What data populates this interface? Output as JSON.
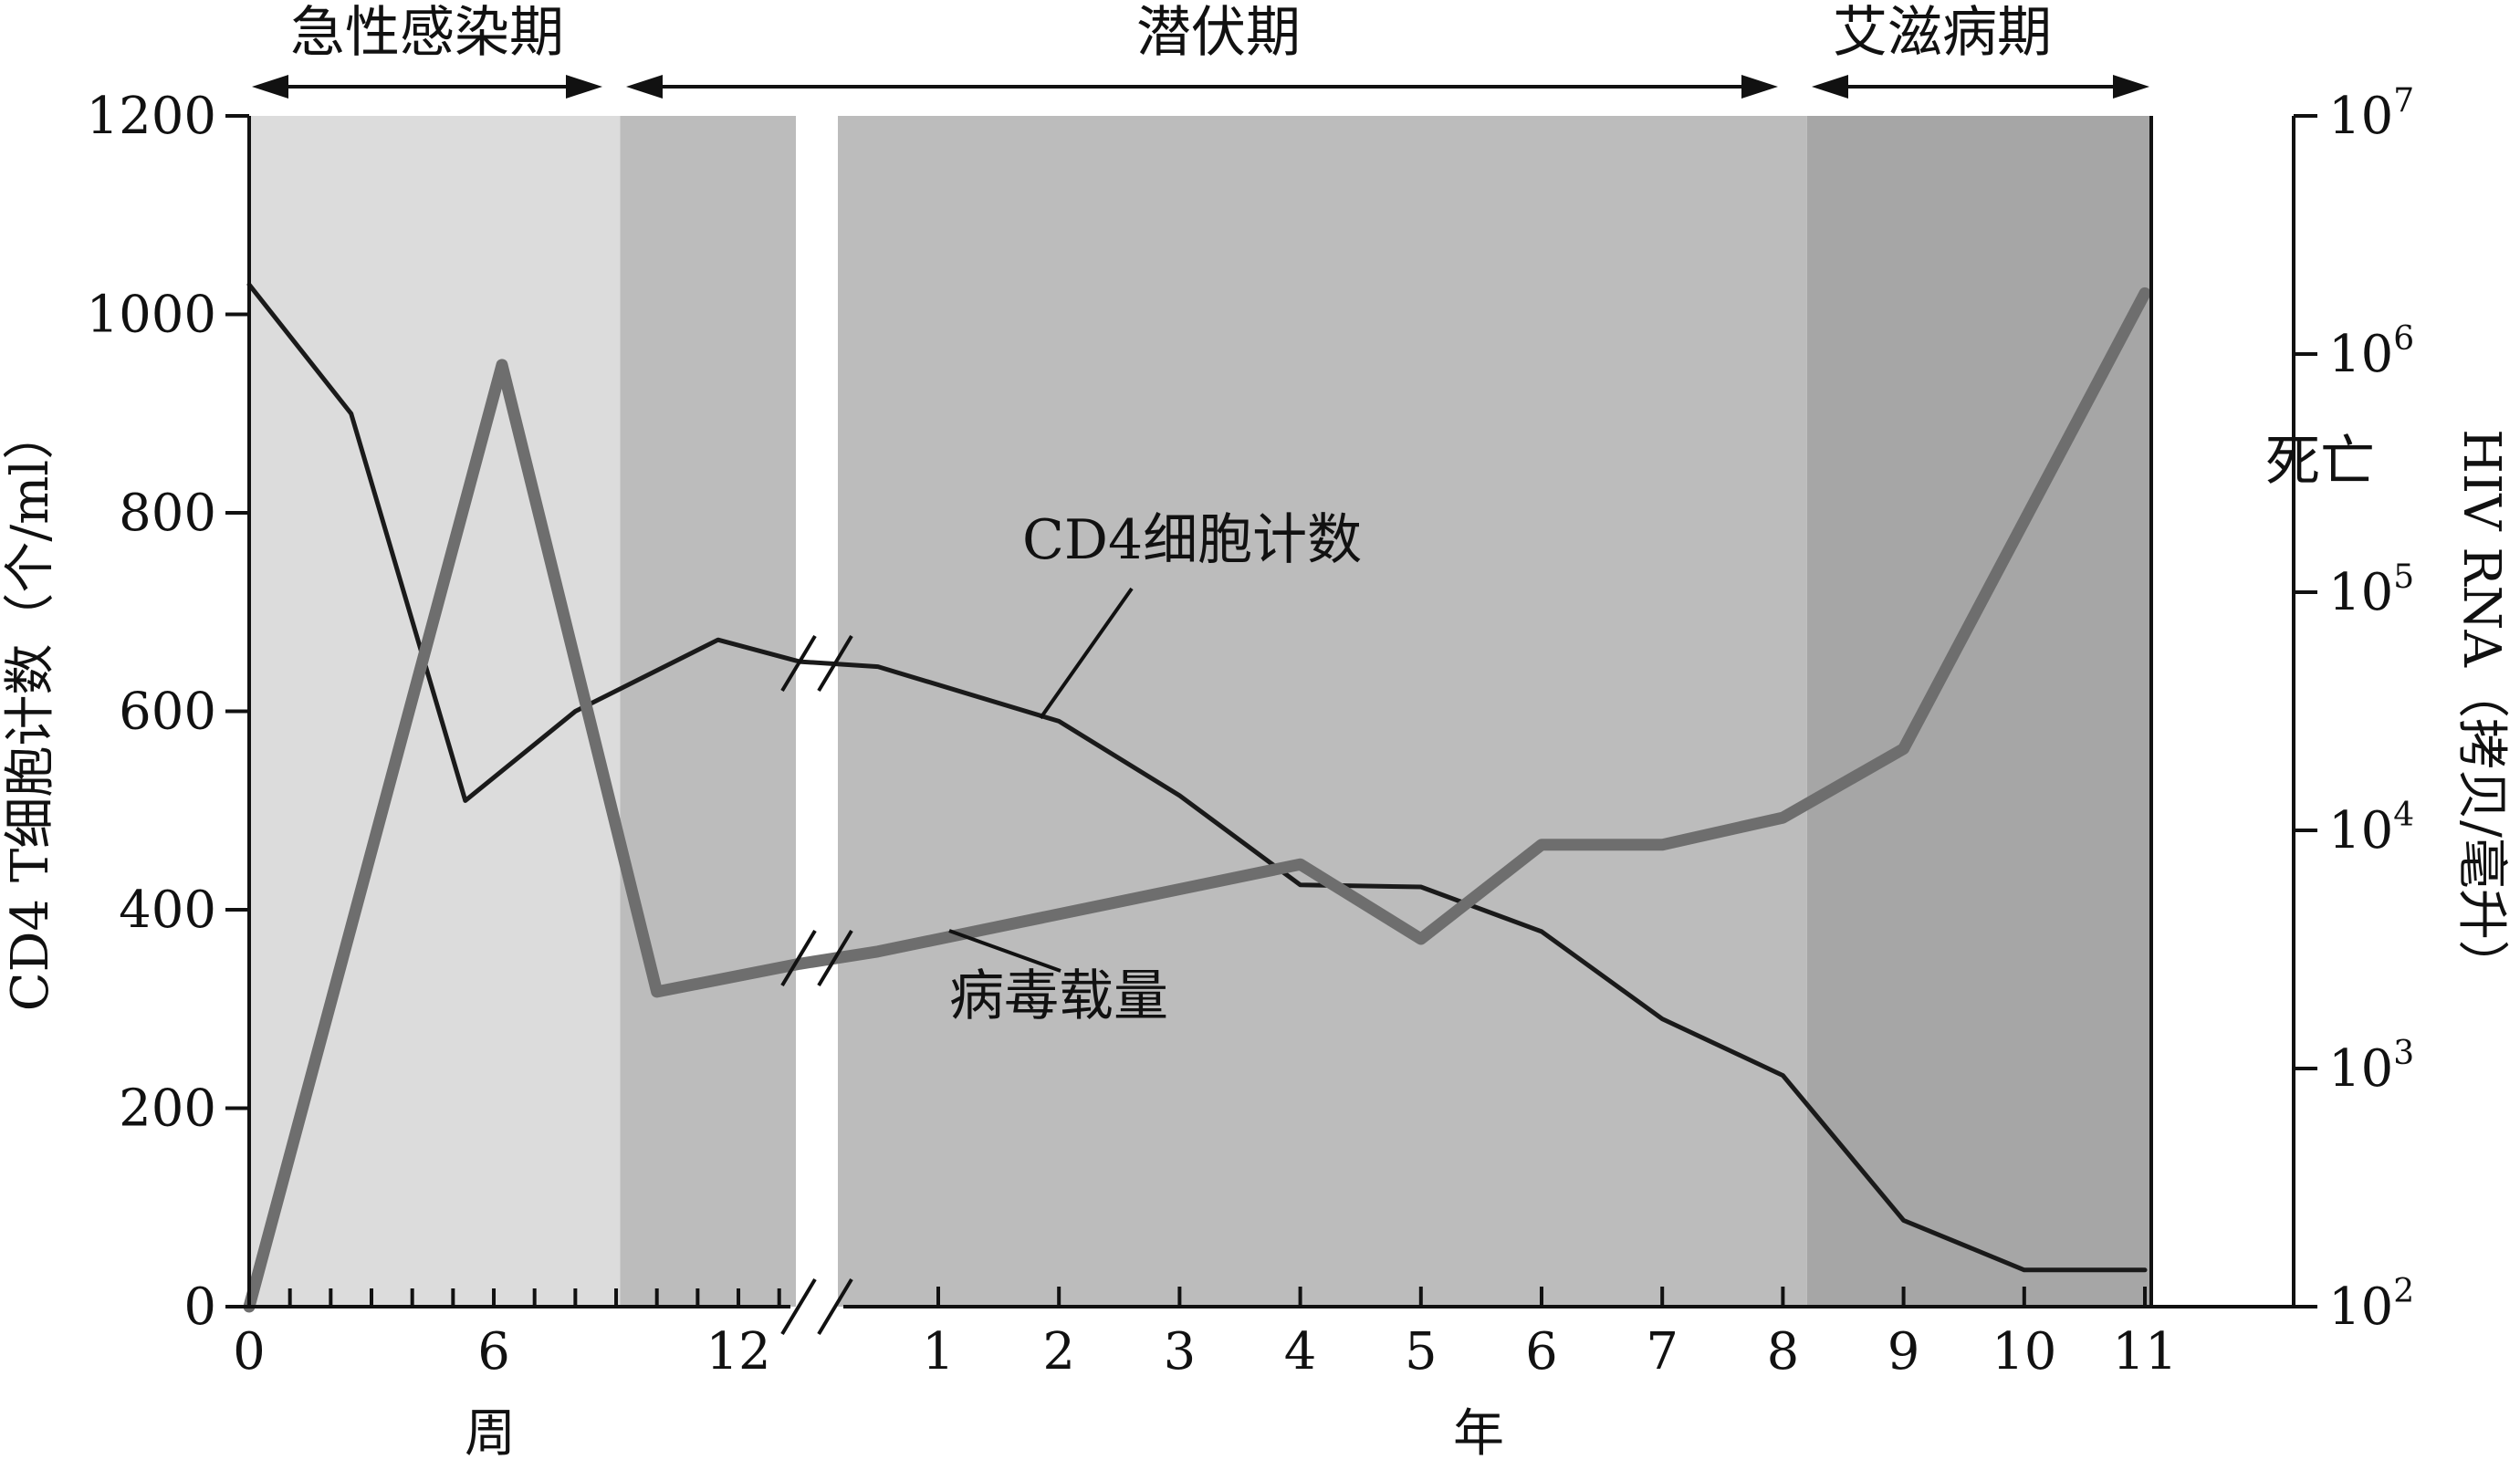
{
  "chart_data": {
    "type": "line",
    "phases": [
      {
        "label": "急性感染期",
        "color": "#dcdcdc"
      },
      {
        "label": "",
        "color": "#bcbcbc"
      },
      {
        "label": "潜伏期",
        "color": "#bcbcbc"
      },
      {
        "label": "艾滋病期",
        "color": "#a6a6a6"
      }
    ],
    "x_axis": {
      "weeks": {
        "ticks": [
          "0",
          "6",
          "12"
        ],
        "label": "周",
        "range": [
          0,
          13.5
        ]
      },
      "years": {
        "ticks": [
          "1",
          "2",
          "3",
          "4",
          "5",
          "6",
          "7",
          "8",
          "9",
          "10",
          "11"
        ],
        "label": "年",
        "range": [
          0.5,
          11
        ]
      }
    },
    "y_left": {
      "label": "CD4 T细胞计数（个/ml）",
      "ticks": [
        "0",
        "200",
        "400",
        "600",
        "800",
        "1000",
        "1200"
      ],
      "range": [
        0,
        1200
      ]
    },
    "y_right": {
      "label": "HIV RNA（拷贝/毫升）",
      "scale": "log",
      "range": [
        100,
        10000000
      ],
      "ticks": [
        {
          "base": "10",
          "exp": "2"
        },
        {
          "base": "10",
          "exp": "3"
        },
        {
          "base": "10",
          "exp": "4"
        },
        {
          "base": "10",
          "exp": "5"
        },
        {
          "base": "10",
          "exp": "6"
        },
        {
          "base": "10",
          "exp": "7"
        }
      ]
    },
    "series": [
      {
        "name": "CD4细胞计数",
        "axis": "left",
        "color": "#1a1a1a",
        "weeks": [
          [
            0,
            1030
          ],
          [
            2.5,
            900
          ],
          [
            5.3,
            510
          ],
          [
            8,
            600
          ],
          [
            11.5,
            672
          ],
          [
            13.5,
            650
          ]
        ],
        "years": [
          [
            0.5,
            645
          ],
          [
            2,
            590
          ],
          [
            3,
            515
          ],
          [
            4,
            425
          ],
          [
            5,
            423
          ],
          [
            6,
            378
          ],
          [
            7,
            290
          ],
          [
            8,
            233
          ],
          [
            9,
            87
          ],
          [
            10,
            37
          ],
          [
            11,
            37
          ]
        ]
      },
      {
        "name": "病毒载量",
        "axis": "right",
        "color": "#6e6e6e",
        "weeks": [
          [
            0,
            100
          ],
          [
            6.2,
            900000
          ],
          [
            10,
            2100
          ],
          [
            13.5,
            2750
          ]
        ],
        "years": [
          [
            0.5,
            3100
          ],
          [
            4,
            7200
          ],
          [
            5,
            3500
          ],
          [
            6,
            8700
          ],
          [
            7,
            8700
          ],
          [
            8,
            11300
          ],
          [
            9,
            22000
          ],
          [
            11,
            1800000
          ]
        ]
      }
    ],
    "annotations": [
      "死亡"
    ]
  }
}
